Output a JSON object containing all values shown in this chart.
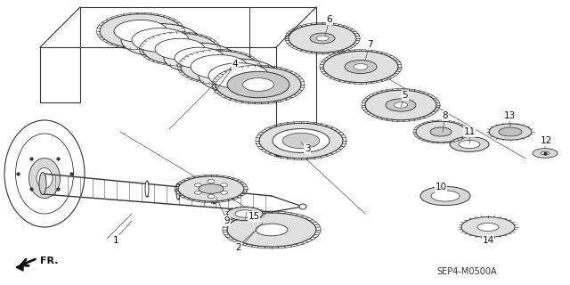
{
  "bg_color": "#ffffff",
  "diagram_code": "SEP4-M0500A",
  "fr_label": "FR.",
  "figsize": [
    6.4,
    3.2
  ],
  "dpi": 100,
  "line_color": "#333333",
  "line_color2": "#555555",
  "shaft_color": "#444444",
  "box_color": "#222222",
  "gear_fill": "#e0e0e0",
  "gear_fill2": "#cccccc",
  "white": "#ffffff"
}
